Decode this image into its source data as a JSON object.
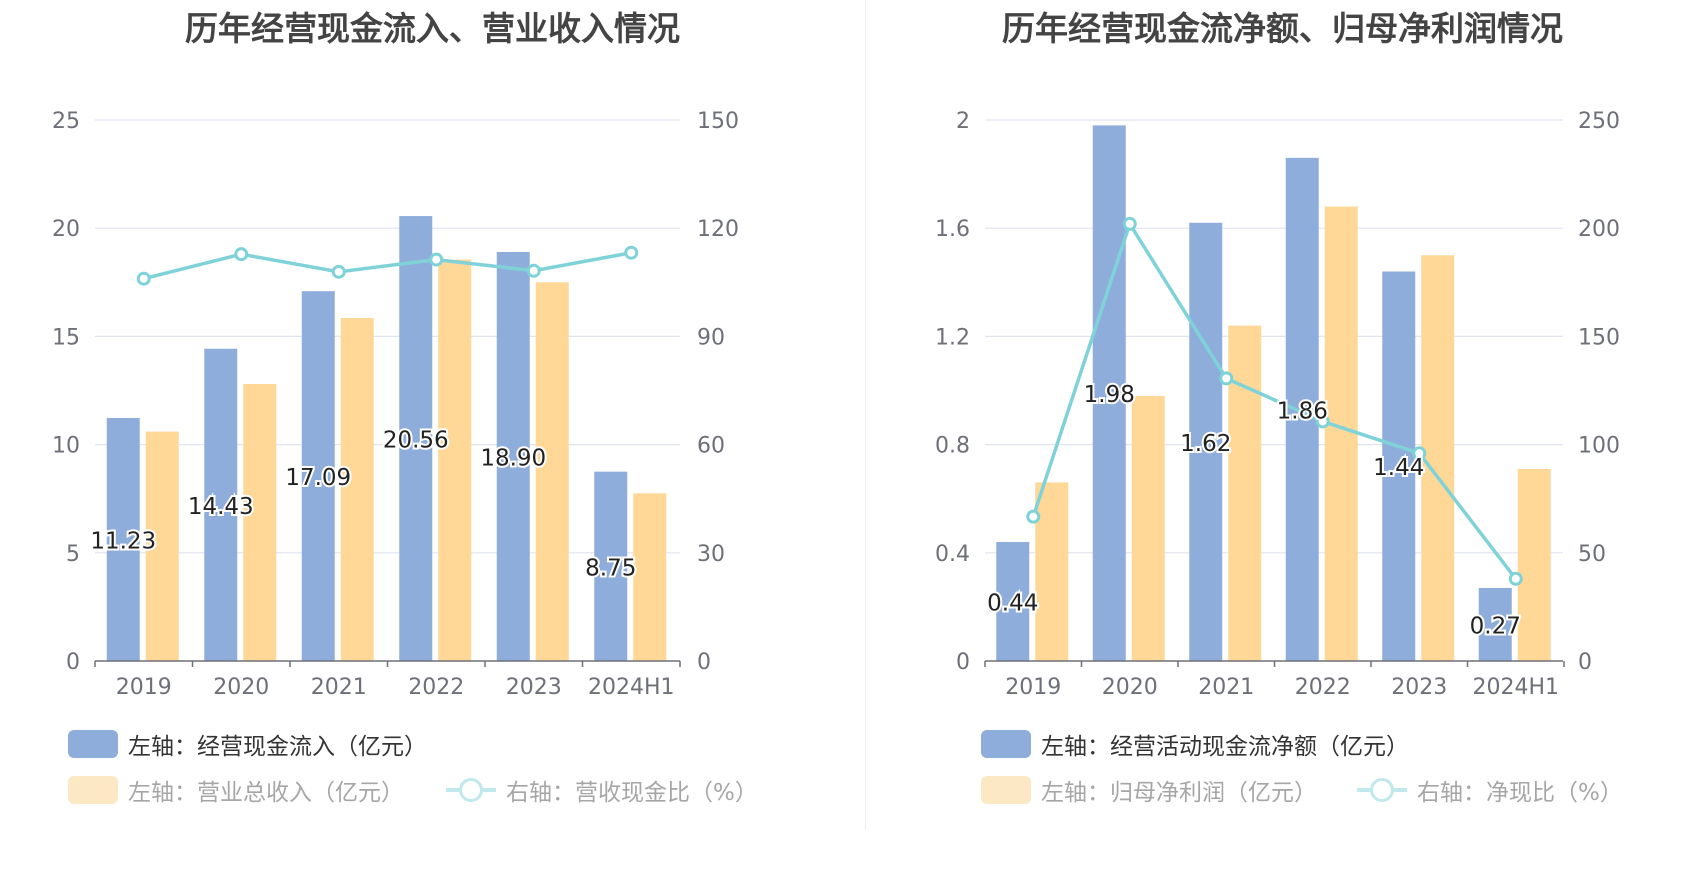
{
  "colors": {
    "bar1": "#8eaddb",
    "bar2": "#ffd898",
    "line": "#7fd3d8",
    "bar1_legend": "#8eaddb",
    "bar2_legend_dim": "#fde8c6",
    "line_legend_dim": "#bfe9ec",
    "grid": "#dfe4ee",
    "axis_text": "#6e7079",
    "axis_line": "#6e7079"
  },
  "charts": [
    {
      "title": "历年经营现金流入、营业收入情况",
      "legend": [
        {
          "label": "左轴：经营现金流入（亿元）",
          "kind": "bar",
          "active": true
        },
        {
          "label": "左轴：营业总收入（亿元）",
          "kind": "bar",
          "active": false
        },
        {
          "label": "右轴：营收现金比（%）",
          "kind": "line",
          "active": false
        }
      ]
    },
    {
      "title": "历年经营现金流净额、归母净利润情况",
      "legend": [
        {
          "label": "左轴：经营活动现金流净额（亿元）",
          "kind": "bar",
          "active": true
        },
        {
          "label": "左轴：归母净利润（亿元）",
          "kind": "bar",
          "active": false
        },
        {
          "label": "右轴：净现比（%）",
          "kind": "line",
          "active": false
        }
      ]
    }
  ],
  "chart_data": [
    {
      "type": "bar",
      "title": "历年经营现金流入、营业收入情况",
      "categories": [
        "2019",
        "2020",
        "2021",
        "2022",
        "2023",
        "2024H1"
      ],
      "y_left": {
        "min": 0,
        "max": 25,
        "ticks": [
          "0",
          "5",
          "10",
          "15",
          "20",
          "25"
        ]
      },
      "y_right": {
        "min": 0,
        "max": 150,
        "ticks": [
          "0",
          "30",
          "60",
          "90",
          "120",
          "150"
        ]
      },
      "grid": true,
      "series": [
        {
          "name": "左轴：经营现金流入（亿元）",
          "type": "bar",
          "axis": "left",
          "values": [
            11.23,
            14.43,
            17.09,
            20.56,
            18.9,
            8.75
          ],
          "labels": [
            "11.23",
            "14.43",
            "17.09",
            "20.56",
            "18.90",
            "8.75"
          ]
        },
        {
          "name": "左轴：营业总收入（亿元）",
          "type": "bar",
          "axis": "left",
          "values": [
            10.6,
            12.8,
            15.85,
            18.55,
            17.5,
            7.75
          ]
        },
        {
          "name": "右轴：营收现金比（%）",
          "type": "line",
          "axis": "right",
          "values": [
            106,
            112.8,
            107.9,
            111.3,
            108.2,
            113.2
          ]
        }
      ]
    },
    {
      "type": "bar",
      "title": "历年经营现金流净额、归母净利润情况",
      "categories": [
        "2019",
        "2020",
        "2021",
        "2022",
        "2023",
        "2024H1"
      ],
      "y_left": {
        "min": 0,
        "max": 2,
        "ticks": [
          "0",
          "0.4",
          "0.8",
          "1.2",
          "1.6",
          "2"
        ]
      },
      "y_right": {
        "min": 0,
        "max": 250,
        "ticks": [
          "0",
          "50",
          "100",
          "150",
          "200",
          "250"
        ]
      },
      "grid": true,
      "series": [
        {
          "name": "左轴：经营活动现金流净额（亿元）",
          "type": "bar",
          "axis": "left",
          "values": [
            0.44,
            1.98,
            1.62,
            1.86,
            1.44,
            0.27
          ],
          "labels": [
            "0.44",
            "1.98",
            "1.62",
            "1.86",
            "1.44",
            "0.27"
          ]
        },
        {
          "name": "左轴：归母净利润（亿元）",
          "type": "bar",
          "axis": "left",
          "values": [
            0.66,
            0.98,
            1.24,
            1.68,
            1.5,
            0.71
          ]
        },
        {
          "name": "右轴：净现比（%）",
          "type": "line",
          "axis": "right",
          "values": [
            66.7,
            202,
            130.6,
            110.7,
            96,
            38
          ]
        }
      ]
    }
  ]
}
